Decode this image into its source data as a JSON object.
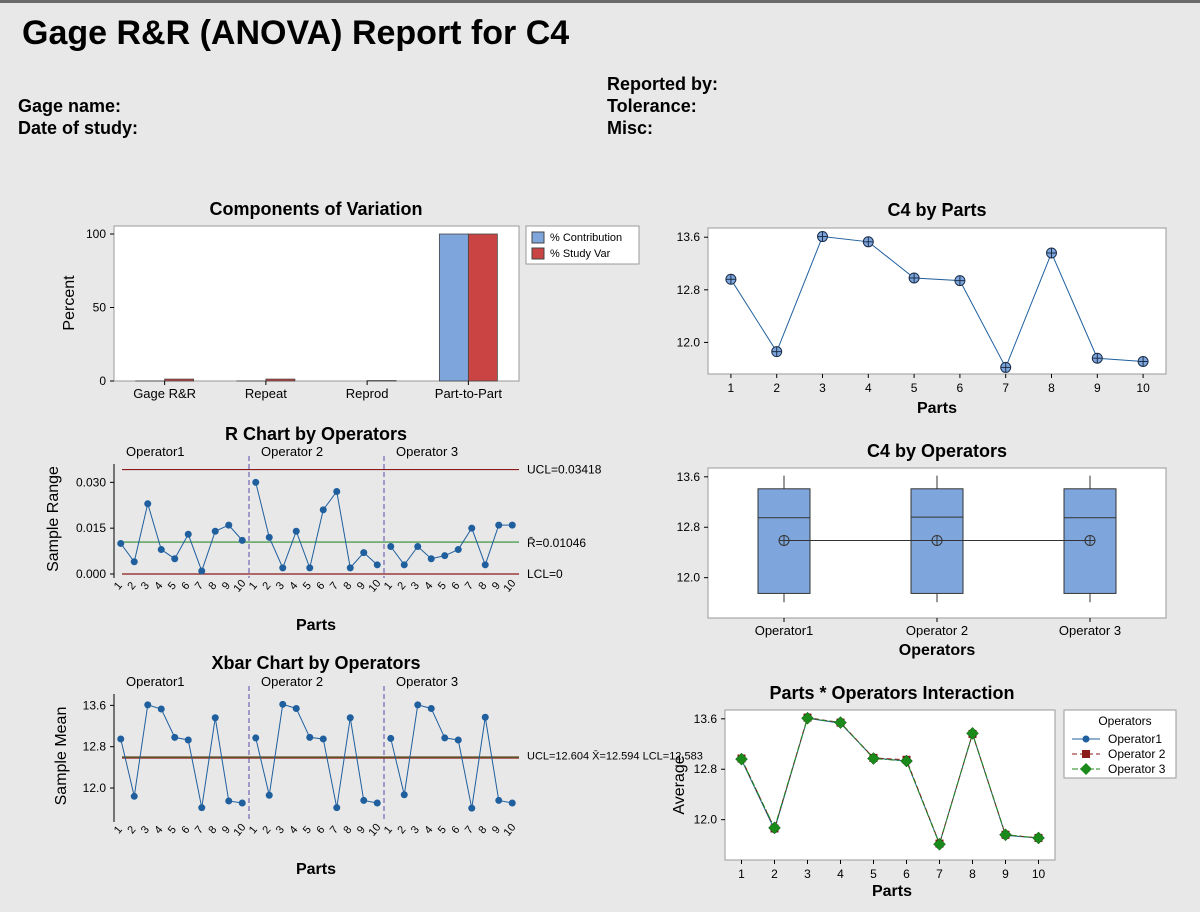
{
  "report": {
    "title": "Gage R&R (ANOVA) Report for C4",
    "gage_name_label": "Gage name:",
    "date_label": "Date of study:",
    "reported_by_label": "Reported by:",
    "tolerance_label": "Tolerance:",
    "misc_label": "Misc:"
  },
  "colors": {
    "background": "#e8e8e8",
    "plot_bg": "#ffffff",
    "blue_bar": "#7ea6dc",
    "red_bar": "#c94442",
    "point_blue": "#1f5f9e",
    "limit_red": "#8b1a1a",
    "center_green": "#2e8b2e",
    "divider_purple": "#5a4aa8",
    "green_diamond": "#1a8a1a",
    "dark_red_square": "#8b1a1a"
  },
  "chart_data": [
    {
      "id": "components",
      "type": "bar",
      "title": "Components of Variation",
      "ylabel": "Percent",
      "xlabel": "",
      "ylim": [
        0,
        100
      ],
      "yticks": [
        0,
        50,
        100
      ],
      "categories": [
        "Gage R&R",
        "Repeat",
        "Reprod",
        "Part-to-Part"
      ],
      "series": [
        {
          "name": "% Contribution",
          "color": "#7ea6dc",
          "values": [
            0.02,
            0.02,
            0.0,
            99.98
          ]
        },
        {
          "name": "% Study Var",
          "color": "#c94442",
          "values": [
            1.3,
            1.3,
            0.3,
            99.99
          ]
        }
      ],
      "legend": "right"
    },
    {
      "id": "rchart",
      "type": "line",
      "title": "R Chart by Operators",
      "ylabel": "Sample Range",
      "xlabel": "Parts",
      "ylim": [
        0,
        0.036
      ],
      "yticks": [
        "0.000",
        "0.015",
        "0.030"
      ],
      "ytick_values": [
        0,
        0.015,
        0.03
      ],
      "groups": [
        "Operator1",
        "Operator 2",
        "Operator 3"
      ],
      "parts": [
        "1",
        "2",
        "3",
        "4",
        "5",
        "6",
        "7",
        "8",
        "9",
        "10"
      ],
      "values": [
        [
          0.01,
          0.004,
          0.023,
          0.008,
          0.005,
          0.013,
          0.001,
          0.014,
          0.016,
          0.011
        ],
        [
          0.03,
          0.012,
          0.002,
          0.014,
          0.002,
          0.021,
          0.027,
          0.002,
          0.007,
          0.003
        ],
        [
          0.009,
          0.003,
          0.009,
          0.005,
          0.006,
          0.008,
          0.015,
          0.003,
          0.016,
          0.016
        ]
      ],
      "ucl": 0.03418,
      "center": 0.01046,
      "lcl": 0,
      "ucl_label": "UCL=0.03418",
      "center_label": "R̄=0.01046",
      "lcl_label": "LCL=0"
    },
    {
      "id": "xbar",
      "type": "line",
      "title": "Xbar Chart by Operators",
      "ylabel": "Sample Mean",
      "xlabel": "Parts",
      "ylim": [
        11.42,
        13.82
      ],
      "yticks": [
        "12.0",
        "12.8",
        "13.6"
      ],
      "ytick_values": [
        12.0,
        12.8,
        13.6
      ],
      "groups": [
        "Operator1",
        "Operator 2",
        "Operator 3"
      ],
      "parts": [
        "1",
        "2",
        "3",
        "4",
        "5",
        "6",
        "7",
        "8",
        "9",
        "10"
      ],
      "values": [
        [
          12.95,
          11.84,
          13.61,
          13.53,
          12.98,
          12.93,
          11.62,
          13.36,
          11.75,
          11.71
        ],
        [
          12.97,
          11.86,
          13.62,
          13.54,
          12.98,
          12.95,
          11.62,
          13.36,
          11.76,
          11.71
        ],
        [
          12.96,
          11.87,
          13.61,
          13.54,
          12.97,
          12.93,
          11.61,
          13.37,
          11.76,
          11.71
        ]
      ],
      "ucl": 12.6,
      "center": 12.59,
      "lcl": 12.58,
      "limit_label": "UCL=12.604 X̄=12.594 LCL=12.583"
    },
    {
      "id": "byparts",
      "type": "line",
      "title": "C4 by Parts",
      "xlabel": "Parts",
      "ylabel": "",
      "ylim": [
        11.52,
        13.74
      ],
      "yticks": [
        "12.0",
        "12.8",
        "13.6"
      ],
      "ytick_values": [
        12.0,
        12.8,
        13.6
      ],
      "x": [
        "1",
        "2",
        "3",
        "4",
        "5",
        "6",
        "7",
        "8",
        "9",
        "10"
      ],
      "values": [
        12.96,
        11.86,
        13.61,
        13.53,
        12.98,
        12.94,
        11.62,
        13.36,
        11.76,
        11.71
      ]
    },
    {
      "id": "byops",
      "type": "box",
      "title": "C4 by Operators",
      "xlabel": "Operators",
      "ylabel": "",
      "ylim": [
        11.36,
        13.74
      ],
      "yticks": [
        "12.0",
        "12.8",
        "13.6"
      ],
      "ytick_values": [
        12.0,
        12.8,
        13.6
      ],
      "categories": [
        "Operator1",
        "Operator 2",
        "Operator 3"
      ],
      "boxes": [
        {
          "min": 11.61,
          "q1": 11.75,
          "median": 12.95,
          "q3": 13.41,
          "max": 13.62,
          "mean": 12.59
        },
        {
          "min": 11.61,
          "q1": 11.75,
          "median": 12.96,
          "q3": 13.41,
          "max": 13.62,
          "mean": 12.59
        },
        {
          "min": 11.61,
          "q1": 11.75,
          "median": 12.95,
          "q3": 13.41,
          "max": 13.62,
          "mean": 12.59
        }
      ]
    },
    {
      "id": "interaction",
      "type": "line",
      "title": "Parts * Operators Interaction",
      "xlabel": "Parts",
      "ylabel": "Average",
      "ylim": [
        11.36,
        13.74
      ],
      "yticks": [
        "12.0",
        "12.8",
        "13.6"
      ],
      "ytick_values": [
        12.0,
        12.8,
        13.6
      ],
      "x": [
        "1",
        "2",
        "3",
        "4",
        "5",
        "6",
        "7",
        "8",
        "9",
        "10"
      ],
      "legend_title": "Operators",
      "series": [
        {
          "name": "Operator1",
          "values": [
            12.95,
            11.84,
            13.61,
            13.53,
            12.98,
            12.93,
            11.62,
            13.36,
            11.75,
            11.71
          ]
        },
        {
          "name": "Operator 2",
          "values": [
            12.97,
            11.86,
            13.62,
            13.54,
            12.98,
            12.95,
            11.62,
            13.36,
            11.76,
            11.71
          ]
        },
        {
          "name": "Operator 3",
          "values": [
            12.96,
            11.87,
            13.61,
            13.54,
            12.97,
            12.93,
            11.61,
            13.37,
            11.76,
            11.71
          ]
        }
      ]
    }
  ]
}
